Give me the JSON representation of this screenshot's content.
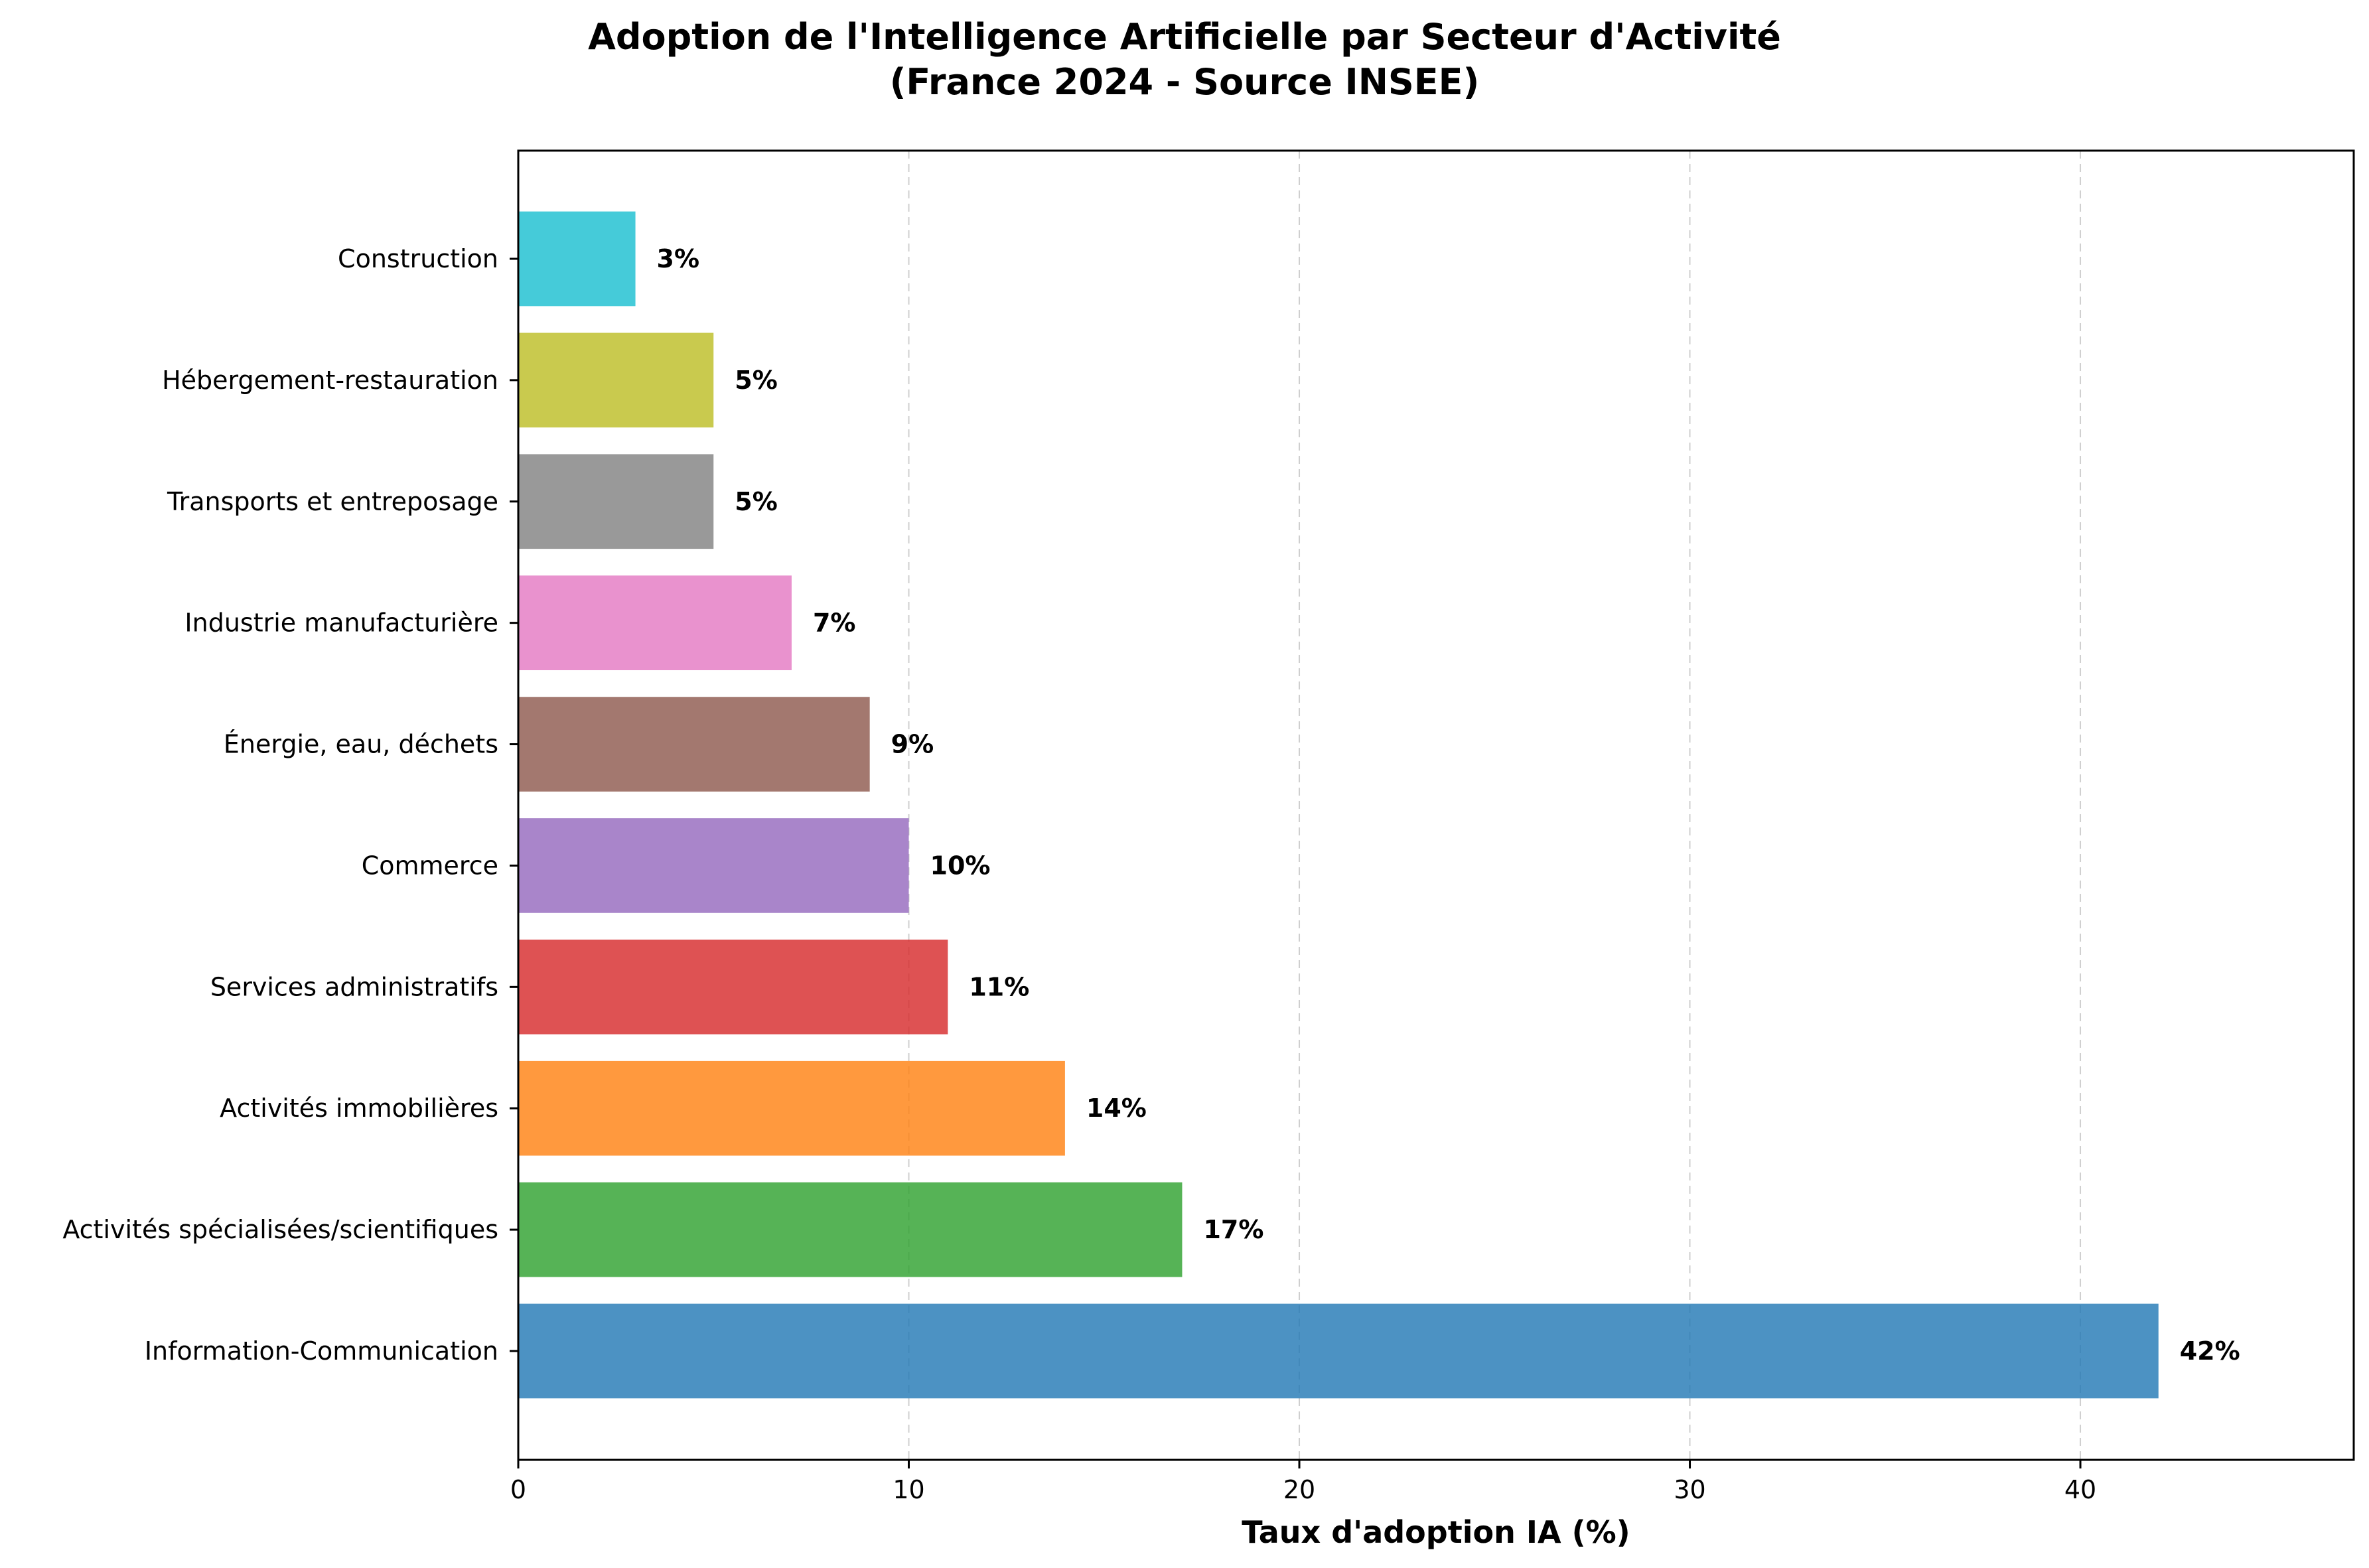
{
  "chart_data": {
    "type": "bar",
    "orientation": "horizontal",
    "title": "Adoption de l'Intelligence Artificielle par Secteur d'Activité",
    "subtitle": "(France 2024 - Source INSEE)",
    "xlabel": "Taux d'adoption IA (%)",
    "ylabel": "",
    "xlim": [
      0,
      47
    ],
    "xticks": [
      0,
      10,
      20,
      30,
      40
    ],
    "grid": "x-dashed",
    "categories": [
      "Information-Communication",
      "Activités spécialisées/scientifiques",
      "Activités immobilières",
      "Services administratifs",
      "Commerce",
      "Énergie, eau, déchets",
      "Industrie manufacturière",
      "Transports et entreposage",
      "Hébergement-restauration",
      "Construction"
    ],
    "values": [
      42,
      17,
      14,
      11,
      10,
      9,
      7,
      5,
      5,
      3
    ],
    "value_labels": [
      "42%",
      "17%",
      "14%",
      "11%",
      "10%",
      "9%",
      "7%",
      "5%",
      "5%",
      "3%"
    ],
    "colors": [
      "#1f77b4",
      "#2ca02c",
      "#ff7f0e",
      "#d62728",
      "#9467bd",
      "#8c564b",
      "#e377c2",
      "#7f7f7f",
      "#bcbd22",
      "#17becf"
    ]
  }
}
